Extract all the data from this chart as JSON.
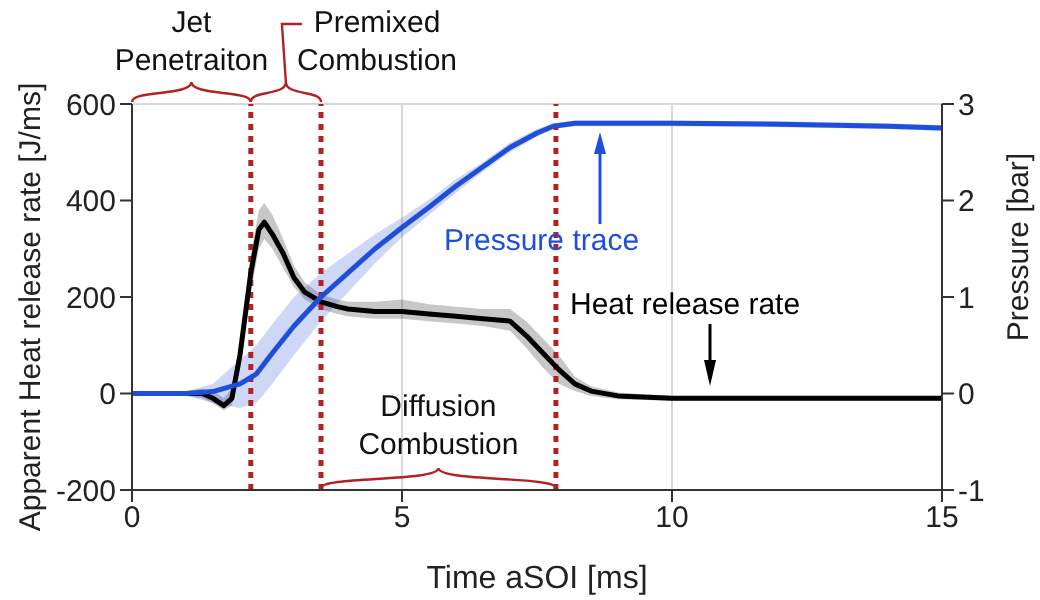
{
  "chart_data": {
    "type": "line",
    "xlabel": "Time aSOI [ms]",
    "ylabel": "Apparent Heat release rate [J/ms]",
    "y2label": "Pressure [bar]",
    "xlim": [
      0,
      15
    ],
    "xticks": [
      0,
      5,
      10,
      15
    ],
    "ylim": [
      -200,
      600
    ],
    "yticks": [
      -200,
      0,
      200,
      400,
      600
    ],
    "y2lim": [
      -1,
      3
    ],
    "y2ticks": [
      -1,
      0,
      1,
      2,
      3
    ],
    "grid": true,
    "line_style": "solid",
    "series": [
      {
        "color": "#000000",
        "x": [
          0,
          0.5,
          1,
          1.3,
          1.5,
          1.7,
          1.85,
          2,
          2.2,
          2.35,
          2.45,
          2.6,
          2.8,
          3,
          3.2,
          3.5,
          3.8,
          4,
          4.5,
          5,
          5.5,
          6,
          6.5,
          7,
          7.3,
          7.6,
          7.9,
          8.2,
          8.5,
          9,
          10,
          11,
          12,
          13,
          14,
          15
        ],
        "values": [
          0,
          0,
          0,
          0,
          -10,
          -25,
          -10,
          80,
          250,
          340,
          355,
          330,
          290,
          240,
          210,
          190,
          180,
          175,
          170,
          170,
          165,
          160,
          155,
          150,
          120,
          85,
          50,
          20,
          5,
          -5,
          -10,
          -10,
          -10,
          -10,
          -10,
          -10
        ],
        "lower": [
          -5,
          -5,
          -5,
          -10,
          -20,
          -35,
          -25,
          50,
          210,
          300,
          320,
          300,
          260,
          220,
          195,
          175,
          165,
          160,
          155,
          155,
          150,
          145,
          140,
          130,
          95,
          55,
          20,
          5,
          -5,
          -12,
          -15,
          -15,
          -15,
          -15,
          -15,
          -15
        ],
        "upper": [
          5,
          5,
          5,
          10,
          5,
          -10,
          10,
          110,
          290,
          380,
          395,
          370,
          320,
          265,
          230,
          205,
          195,
          190,
          190,
          195,
          185,
          180,
          175,
          175,
          150,
          115,
          80,
          35,
          15,
          2,
          -5,
          -5,
          -5,
          -5,
          -5,
          -5
        ]
      },
      {
        "color": "#1f4fd8",
        "axis": "y2",
        "x": [
          0,
          1,
          1.5,
          2,
          2.3,
          2.6,
          3,
          3.5,
          4,
          4.5,
          5,
          5.5,
          6,
          6.5,
          7,
          7.5,
          7.8,
          8.2,
          9,
          10,
          12,
          14,
          15
        ],
        "values": [
          0,
          0,
          0.02,
          0.1,
          0.2,
          0.42,
          0.7,
          1.0,
          1.25,
          1.5,
          1.72,
          1.93,
          2.15,
          2.35,
          2.55,
          2.7,
          2.77,
          2.8,
          2.8,
          2.8,
          2.79,
          2.77,
          2.75
        ],
        "lower": [
          -0.02,
          -0.02,
          -0.1,
          -0.15,
          -0.1,
          0.1,
          0.4,
          0.75,
          1.05,
          1.35,
          1.62,
          1.85,
          2.08,
          2.3,
          2.5,
          2.66,
          2.74,
          2.77,
          2.77,
          2.77,
          2.76,
          2.74,
          2.72
        ],
        "upper": [
          0.02,
          0.02,
          0.1,
          0.35,
          0.5,
          0.72,
          1.0,
          1.25,
          1.45,
          1.65,
          1.82,
          2.01,
          2.22,
          2.4,
          2.6,
          2.74,
          2.8,
          2.83,
          2.83,
          2.83,
          2.82,
          2.8,
          2.78
        ]
      }
    ],
    "ref_lines": [
      {
        "axis": "x",
        "value": 2.2,
        "color": "#b22222",
        "line_style": "dotted"
      },
      {
        "axis": "x",
        "value": 3.5,
        "color": "#b22222",
        "line_style": "dotted"
      },
      {
        "axis": "x",
        "value": 7.85,
        "color": "#b22222",
        "line_style": "dotted"
      }
    ],
    "annotations": [
      "Jet Penetraiton",
      "Premixed Combustion",
      "Diffusion Combustion",
      "Pressure trace",
      "Heat release rate"
    ]
  }
}
